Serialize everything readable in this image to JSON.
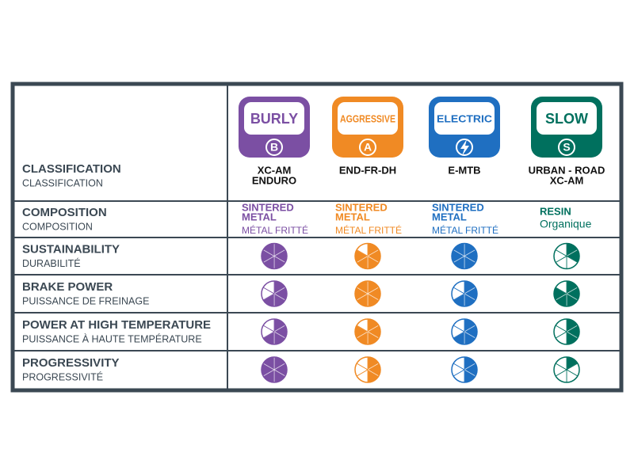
{
  "row_labels": [
    {
      "en": "CLASSIFICATION",
      "fr": "CLASSIFICATION"
    },
    {
      "en": "COMPOSITION",
      "fr": "COMPOSITION"
    },
    {
      "en": "SUSTAINABILITY",
      "fr": "DURABILITÉ"
    },
    {
      "en": "BRAKE POWER",
      "fr": "PUISSANCE DE FREINAGE"
    },
    {
      "en": "POWER AT HIGH TEMPERATURE",
      "fr": "PUISSANCE À HAUTE TEMPÉRATURE"
    },
    {
      "en": "PROGRESSIVITY",
      "fr": "PROGRESSIVITÉ"
    }
  ],
  "columns": [
    {
      "badge": "BURLY",
      "letter": "B",
      "color": "#7b4fa3",
      "classification": [
        "XC-AM",
        "ENDURO"
      ],
      "composition": {
        "main": [
          "SINTERED",
          "METAL"
        ],
        "sub": "MÉTAL FRITTÉ"
      },
      "ratings": [
        6,
        4,
        4,
        6
      ]
    },
    {
      "badge": "AGGRESSIVE",
      "letter": "A",
      "color": "#f08a24",
      "classification": [
        "END-FR-DH"
      ],
      "composition": {
        "main": [
          "SINTERED",
          "METAL"
        ],
        "sub": "MÉTAL FRITTÉ"
      },
      "ratings": [
        5,
        6,
        5,
        3
      ]
    },
    {
      "badge": "ELECTRIC",
      "color": "#1f6fc1",
      "classification": [
        "E-MTB"
      ],
      "composition": {
        "main": [
          "SINTERED",
          "METAL"
        ],
        "sub": "MÉTAL FRITTÉ"
      },
      "ratings": [
        6,
        4,
        4,
        3
      ]
    },
    {
      "badge": "SLOW",
      "letter": "S",
      "color": "#00705e",
      "classification": [
        "URBAN - ROAD",
        "XC-AM"
      ],
      "composition": {
        "main": [
          "RESIN"
        ],
        "sub": "Organique"
      },
      "ratings": [
        2,
        5,
        3,
        1
      ]
    }
  ]
}
